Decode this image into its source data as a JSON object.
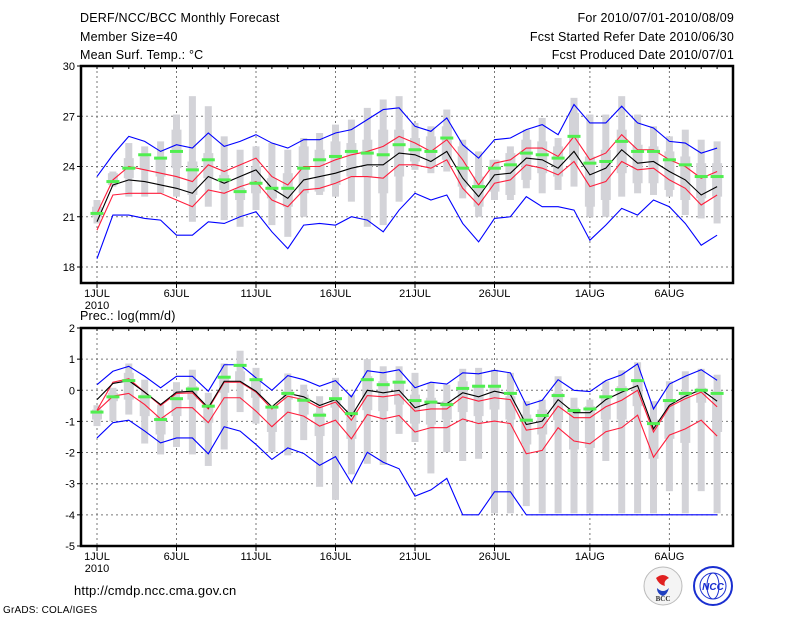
{
  "header": {
    "title": "DERF/NCC/BCC Monthly Forecast",
    "member_size": "Member Size=40",
    "variable_top": "Mean Surf. Temp.: °C",
    "period": "For 2010/07/01-2010/08/09",
    "started": "Fcst Started Refer Date 2010/06/30",
    "produced": "Fcst Produced Date 2010/07/01"
  },
  "footer": {
    "url": "http://cmdp.ncc.cma.gov.cn",
    "credit": "GrADS: COLA/IGES",
    "logo_bcc": "BCC",
    "logo_ncc": "NCC"
  },
  "colors": {
    "box": "#d3d3d8",
    "median": "#50ee50",
    "envelope": "#0000ff",
    "spread": "#ff1e3c",
    "mean": "#000000"
  },
  "chart_data": [
    {
      "type": "line",
      "title": "Mean Surf. Temp.: °C",
      "ylim": [
        17,
        30
      ],
      "yticks": [
        18,
        21,
        24,
        27,
        30
      ],
      "grid": true,
      "x_days": 40,
      "xticks": [
        {
          "day": 1,
          "label": "1JUL"
        },
        {
          "day": 6,
          "label": "6JUL"
        },
        {
          "day": 11,
          "label": "11JUL"
        },
        {
          "day": 16,
          "label": "16JUL"
        },
        {
          "day": 21,
          "label": "21JUL"
        },
        {
          "day": 26,
          "label": "26JUL"
        },
        {
          "day": 32,
          "label": "1AUG"
        },
        {
          "day": 37,
          "label": "6AUG"
        }
      ],
      "year_label": "2010",
      "series": [
        {
          "name": "max",
          "color": "#0000ff",
          "values": [
            23.4,
            24.7,
            25.8,
            25.5,
            24.9,
            25.3,
            25.1,
            26.0,
            25.2,
            25.5,
            25.9,
            25.4,
            25.1,
            25.6,
            25.6,
            26.0,
            26.2,
            26.8,
            27.4,
            27.5,
            26.4,
            26.1,
            26.9,
            25.3,
            24.5,
            25.6,
            25.7,
            26.2,
            26.5,
            25.9,
            27.7,
            26.6,
            26.6,
            27.6,
            26.6,
            26.3,
            25.5,
            25.4,
            24.8,
            25.1
          ]
        },
        {
          "name": "mean+sd",
          "color": "#ff1e3c",
          "values": [
            21.2,
            23.2,
            24.0,
            23.8,
            23.6,
            23.4,
            23.1,
            24.1,
            23.7,
            24.1,
            24.5,
            23.4,
            22.9,
            24.0,
            24.0,
            24.4,
            24.7,
            24.9,
            25.2,
            25.8,
            25.4,
            24.9,
            25.6,
            24.4,
            22.9,
            24.2,
            24.4,
            25.1,
            25.1,
            24.6,
            25.8,
            24.4,
            24.8,
            25.9,
            25.0,
            25.0,
            24.4,
            24.0,
            23.3,
            23.7
          ]
        },
        {
          "name": "mean",
          "color": "#000000",
          "values": [
            20.7,
            22.9,
            23.2,
            23.1,
            22.9,
            22.7,
            22.4,
            23.4,
            23.0,
            23.4,
            23.8,
            22.7,
            22.1,
            23.2,
            23.4,
            23.6,
            23.9,
            24.1,
            24.1,
            24.8,
            24.7,
            24.3,
            24.9,
            23.3,
            22.2,
            23.5,
            23.6,
            24.5,
            24.4,
            23.9,
            24.9,
            23.5,
            23.9,
            25.0,
            24.2,
            24.3,
            23.7,
            23.2,
            22.3,
            22.8
          ]
        },
        {
          "name": "mean-sd",
          "color": "#ff1e3c",
          "values": [
            20.2,
            22.3,
            22.4,
            22.4,
            22.4,
            22.0,
            21.6,
            22.6,
            22.4,
            22.8,
            23.1,
            22.0,
            21.6,
            22.6,
            22.7,
            23.0,
            23.4,
            23.4,
            23.3,
            24.1,
            24.1,
            23.9,
            24.4,
            22.7,
            21.7,
            23.0,
            23.2,
            24.1,
            23.9,
            23.5,
            24.3,
            22.8,
            23.1,
            24.3,
            23.8,
            23.9,
            23.2,
            22.7,
            21.7,
            22.3
          ]
        },
        {
          "name": "min",
          "color": "#0000ff",
          "values": [
            18.5,
            21.1,
            21.1,
            20.9,
            20.8,
            19.9,
            19.9,
            20.7,
            20.6,
            21.0,
            21.3,
            20.1,
            19.1,
            20.5,
            20.6,
            20.5,
            21.0,
            20.8,
            20.1,
            21.4,
            22.4,
            22.0,
            22.3,
            20.6,
            19.5,
            20.9,
            21.0,
            22.2,
            21.6,
            21.6,
            21.4,
            19.6,
            20.5,
            21.5,
            21.1,
            22.0,
            21.6,
            20.6,
            19.3,
            19.9
          ]
        }
      ],
      "median": [
        21.2,
        23.1,
        23.9,
        24.7,
        24.5,
        24.9,
        23.8,
        24.4,
        23.2,
        22.5,
        23.0,
        22.7,
        22.7,
        23.9,
        24.4,
        24.6,
        24.9,
        24.8,
        24.7,
        25.3,
        25.0,
        24.9,
        25.7,
        23.9,
        22.8,
        23.9,
        24.1,
        24.8,
        24.7,
        24.5,
        25.8,
        24.2,
        24.3,
        25.5,
        24.9,
        24.9,
        24.4,
        24.1,
        23.4,
        23.4
      ],
      "box_low": [
        20.6,
        22.8,
        22.2,
        22.2,
        22.4,
        22.2,
        20.7,
        21.6,
        20.8,
        20.4,
        21.4,
        20.5,
        19.8,
        21.0,
        22.3,
        22.2,
        21.9,
        20.4,
        20.5,
        21.9,
        23.8,
        23.6,
        23.7,
        22.1,
        21.0,
        22.0,
        22.0,
        22.7,
        22.4,
        22.6,
        22.8,
        21.0,
        21.0,
        22.2,
        22.4,
        22.3,
        22.2,
        21.1,
        20.9,
        20.6
      ],
      "box_q1": [
        21.0,
        22.9,
        23.3,
        23.8,
        23.4,
        23.9,
        22.3,
        23.3,
        22.6,
        22.0,
        22.4,
        22.1,
        21.6,
        22.4,
        22.5,
        22.9,
        23.4,
        23.4,
        22.4,
        23.4,
        24.3,
        24.0,
        24.4,
        22.8,
        21.6,
        22.5,
        22.3,
        23.2,
        23.6,
        23.4,
        24.4,
        21.6,
        22.0,
        23.6,
        23.0,
        23.0,
        22.6,
        22.0,
        22.1,
        22.2
      ],
      "box_q3": [
        21.6,
        23.6,
        24.5,
        24.6,
        24.6,
        26.2,
        24.3,
        24.8,
        23.5,
        22.7,
        24.0,
        23.3,
        23.6,
        25.2,
        25.0,
        25.5,
        25.4,
        25.6,
        26.2,
        26.2,
        25.7,
        25.8,
        26.4,
        25.2,
        23.4,
        24.4,
        24.8,
        25.6,
        25.5,
        25.2,
        27.2,
        24.6,
        25.0,
        26.2,
        25.3,
        25.2,
        24.9,
        24.6,
        24.2,
        24.2
      ],
      "box_high": [
        22.0,
        23.7,
        25.4,
        25.2,
        25.5,
        27.1,
        28.2,
        27.6,
        25.8,
        25.0,
        25.2,
        25.4,
        25.0,
        25.7,
        26.0,
        26.5,
        26.8,
        27.5,
        28.0,
        28.2,
        26.6,
        26.4,
        27.4,
        25.6,
        24.9,
        24.4,
        25.2,
        26.2,
        26.9,
        25.7,
        28.1,
        27.1,
        27.1,
        28.2,
        27.1,
        26.4,
        25.8,
        26.2,
        25.6,
        25.5
      ]
    },
    {
      "type": "line",
      "title": "Prec.: log(mm/d)",
      "ylim": [
        -5,
        2
      ],
      "yticks": [
        2,
        1,
        0,
        -1,
        -2,
        -3,
        -4,
        -5
      ],
      "grid": true,
      "x_days": 40,
      "xticks": [
        {
          "day": 1,
          "label": "1JUL"
        },
        {
          "day": 6,
          "label": "6JUL"
        },
        {
          "day": 11,
          "label": "11JUL"
        },
        {
          "day": 16,
          "label": "16JUL"
        },
        {
          "day": 21,
          "label": "21JUL"
        },
        {
          "day": 26,
          "label": "26JUL"
        },
        {
          "day": 32,
          "label": "1AUG"
        },
        {
          "day": 37,
          "label": "6AUG"
        }
      ],
      "year_label": "2010",
      "series": [
        {
          "name": "max",
          "color": "#0000ff",
          "values": [
            0.18,
            0.61,
            0.77,
            0.45,
            0.08,
            0.45,
            0.45,
            -0.03,
            0.82,
            0.82,
            0.4,
            0.0,
            0.47,
            0.34,
            0.13,
            0.31,
            -0.21,
            0.63,
            0.56,
            0.66,
            0.08,
            0.26,
            0.2,
            0.56,
            0.53,
            0.64,
            0.56,
            -0.48,
            -0.32,
            0.34,
            0.0,
            -0.04,
            0.31,
            0.5,
            0.85,
            -0.6,
            0.2,
            0.45,
            0.66,
            0.32
          ]
        },
        {
          "name": "mean+sd",
          "color": "#ff1e3c",
          "values": [
            -0.64,
            0.26,
            0.37,
            -0.06,
            -0.49,
            -0.1,
            -0.08,
            -0.6,
            0.26,
            0.26,
            -0.06,
            -0.6,
            -0.19,
            -0.3,
            -0.56,
            -0.38,
            -0.96,
            -0.17,
            -0.21,
            -0.14,
            -0.67,
            -0.6,
            -0.6,
            -0.21,
            -0.35,
            -0.24,
            -0.3,
            -1.28,
            -1.2,
            -0.51,
            -0.88,
            -0.88,
            -0.53,
            -0.32,
            0.0,
            -1.34,
            -0.53,
            -0.27,
            -0.06,
            -0.53
          ]
        },
        {
          "name": "mean",
          "color": "#000000",
          "values": [
            -0.3,
            0.22,
            0.31,
            -0.06,
            -0.46,
            -0.06,
            -0.03,
            -0.56,
            0.29,
            0.29,
            -0.03,
            -0.53,
            -0.1,
            -0.21,
            -0.49,
            -0.3,
            -0.83,
            0.0,
            -0.08,
            0.0,
            -0.56,
            -0.4,
            -0.43,
            -0.08,
            -0.21,
            -0.03,
            -0.14,
            -1.1,
            -0.99,
            -0.3,
            -0.72,
            -0.72,
            -0.3,
            -0.06,
            0.15,
            -1.24,
            -0.48,
            -0.19,
            0.02,
            -0.35
          ]
        },
        {
          "name": "mean-sd",
          "color": "#ff1e3c",
          "values": [
            -0.67,
            -0.19,
            -0.1,
            -0.46,
            -0.92,
            -0.56,
            -0.56,
            -1.04,
            -0.24,
            -0.24,
            -0.67,
            -1.17,
            -0.7,
            -0.83,
            -1.15,
            -0.96,
            -1.56,
            -0.78,
            -0.92,
            -0.81,
            -1.34,
            -1.2,
            -1.2,
            -0.92,
            -1.07,
            -0.99,
            -1.07,
            -2.04,
            -1.93,
            -1.2,
            -1.63,
            -1.72,
            -1.33,
            -1.2,
            -0.8,
            -2.15,
            -1.44,
            -1.24,
            -0.96,
            -1.47
          ]
        },
        {
          "name": "min",
          "color": "#0000ff",
          "values": [
            -1.53,
            -1.04,
            -0.96,
            -1.31,
            -1.69,
            -1.53,
            -1.53,
            -2.04,
            -1.17,
            -1.31,
            -1.74,
            -2.22,
            -1.85,
            -2.03,
            -2.41,
            -2.13,
            -2.97,
            -1.99,
            -2.31,
            -2.52,
            -3.4,
            -3.2,
            -2.83,
            -4.0,
            -4.0,
            -3.26,
            -3.26,
            -4.0,
            -4.0,
            -4.0,
            -4.0,
            -4.0,
            -4.0,
            -4.0,
            -4.0,
            -4.0,
            -4.0,
            -4.0,
            -4.0,
            -4.0
          ]
        }
      ],
      "median": [
        -0.7,
        -0.21,
        0.31,
        -0.21,
        -0.94,
        -0.27,
        0.04,
        -0.51,
        0.42,
        0.8,
        0.34,
        -0.54,
        -0.1,
        -0.32,
        -0.8,
        -0.27,
        -0.75,
        0.34,
        0.18,
        0.26,
        -0.33,
        -0.38,
        -0.46,
        0.06,
        0.13,
        0.13,
        -0.1,
        -0.96,
        -0.81,
        -0.17,
        -0.65,
        -0.6,
        -0.21,
        0.02,
        0.31,
        -1.07,
        -0.33,
        -0.1,
        0.0,
        -0.1
      ],
      "box_low": [
        -1.15,
        -0.99,
        -0.78,
        -1.71,
        -2.06,
        -1.82,
        -2.06,
        -2.43,
        -1.9,
        -0.7,
        -1.07,
        -1.98,
        -2.09,
        -1.6,
        -3.1,
        -3.52,
        -2.7,
        -2.36,
        -2.4,
        -1.4,
        -1.66,
        -2.67,
        -1.99,
        -2.27,
        -2.2,
        -3.95,
        -3.95,
        -3.72,
        -3.95,
        -3.95,
        -3.95,
        -3.95,
        -2.27,
        -3.95,
        -3.95,
        -3.95,
        -3.24,
        -3.95,
        -3.24,
        -3.95
      ],
      "box_q1": [
        -0.94,
        -0.35,
        -0.3,
        -0.83,
        -1.42,
        -0.83,
        -0.3,
        -1.04,
        -0.08,
        0.29,
        -0.24,
        -1.34,
        -0.3,
        -0.78,
        -1.47,
        -0.56,
        -1.56,
        -0.64,
        -0.67,
        -0.46,
        -1.07,
        -1.1,
        -0.94,
        -0.7,
        -0.83,
        -0.62,
        -0.94,
        -1.74,
        -1.42,
        -0.96,
        -1.9,
        -1.85,
        -0.94,
        -0.94,
        -0.51,
        -2.2,
        -1.56,
        -1.69,
        -0.4,
        -1.34
      ],
      "box_q3": [
        -0.62,
        -0.08,
        0.56,
        -0.14,
        -0.83,
        -0.24,
        0.13,
        -0.46,
        0.45,
        0.61,
        0.34,
        -0.56,
        -0.03,
        -0.14,
        -0.72,
        -0.24,
        -0.62,
        0.45,
        0.29,
        0.31,
        -0.14,
        -0.24,
        -0.35,
        0.29,
        0.18,
        0.13,
        -0.19,
        -0.78,
        -0.62,
        -0.08,
        -0.56,
        -0.51,
        -0.24,
        0.13,
        0.29,
        -0.94,
        -0.35,
        -0.14,
        0.08,
        -0.03
      ],
      "box_high": [
        -0.48,
        0.08,
        0.86,
        0.34,
        -0.46,
        0.26,
        0.66,
        -0.08,
        0.86,
        1.27,
        0.72,
        -0.49,
        0.54,
        0.18,
        -0.19,
        0.4,
        -0.14,
        1.0,
        0.77,
        0.77,
        0.56,
        0.24,
        0.18,
        0.69,
        0.72,
        0.66,
        0.56,
        -0.35,
        -0.3,
        0.45,
        -0.24,
        -0.3,
        0.29,
        0.64,
        0.9,
        -0.35,
        0.29,
        0.61,
        0.69,
        0.5
      ]
    }
  ]
}
